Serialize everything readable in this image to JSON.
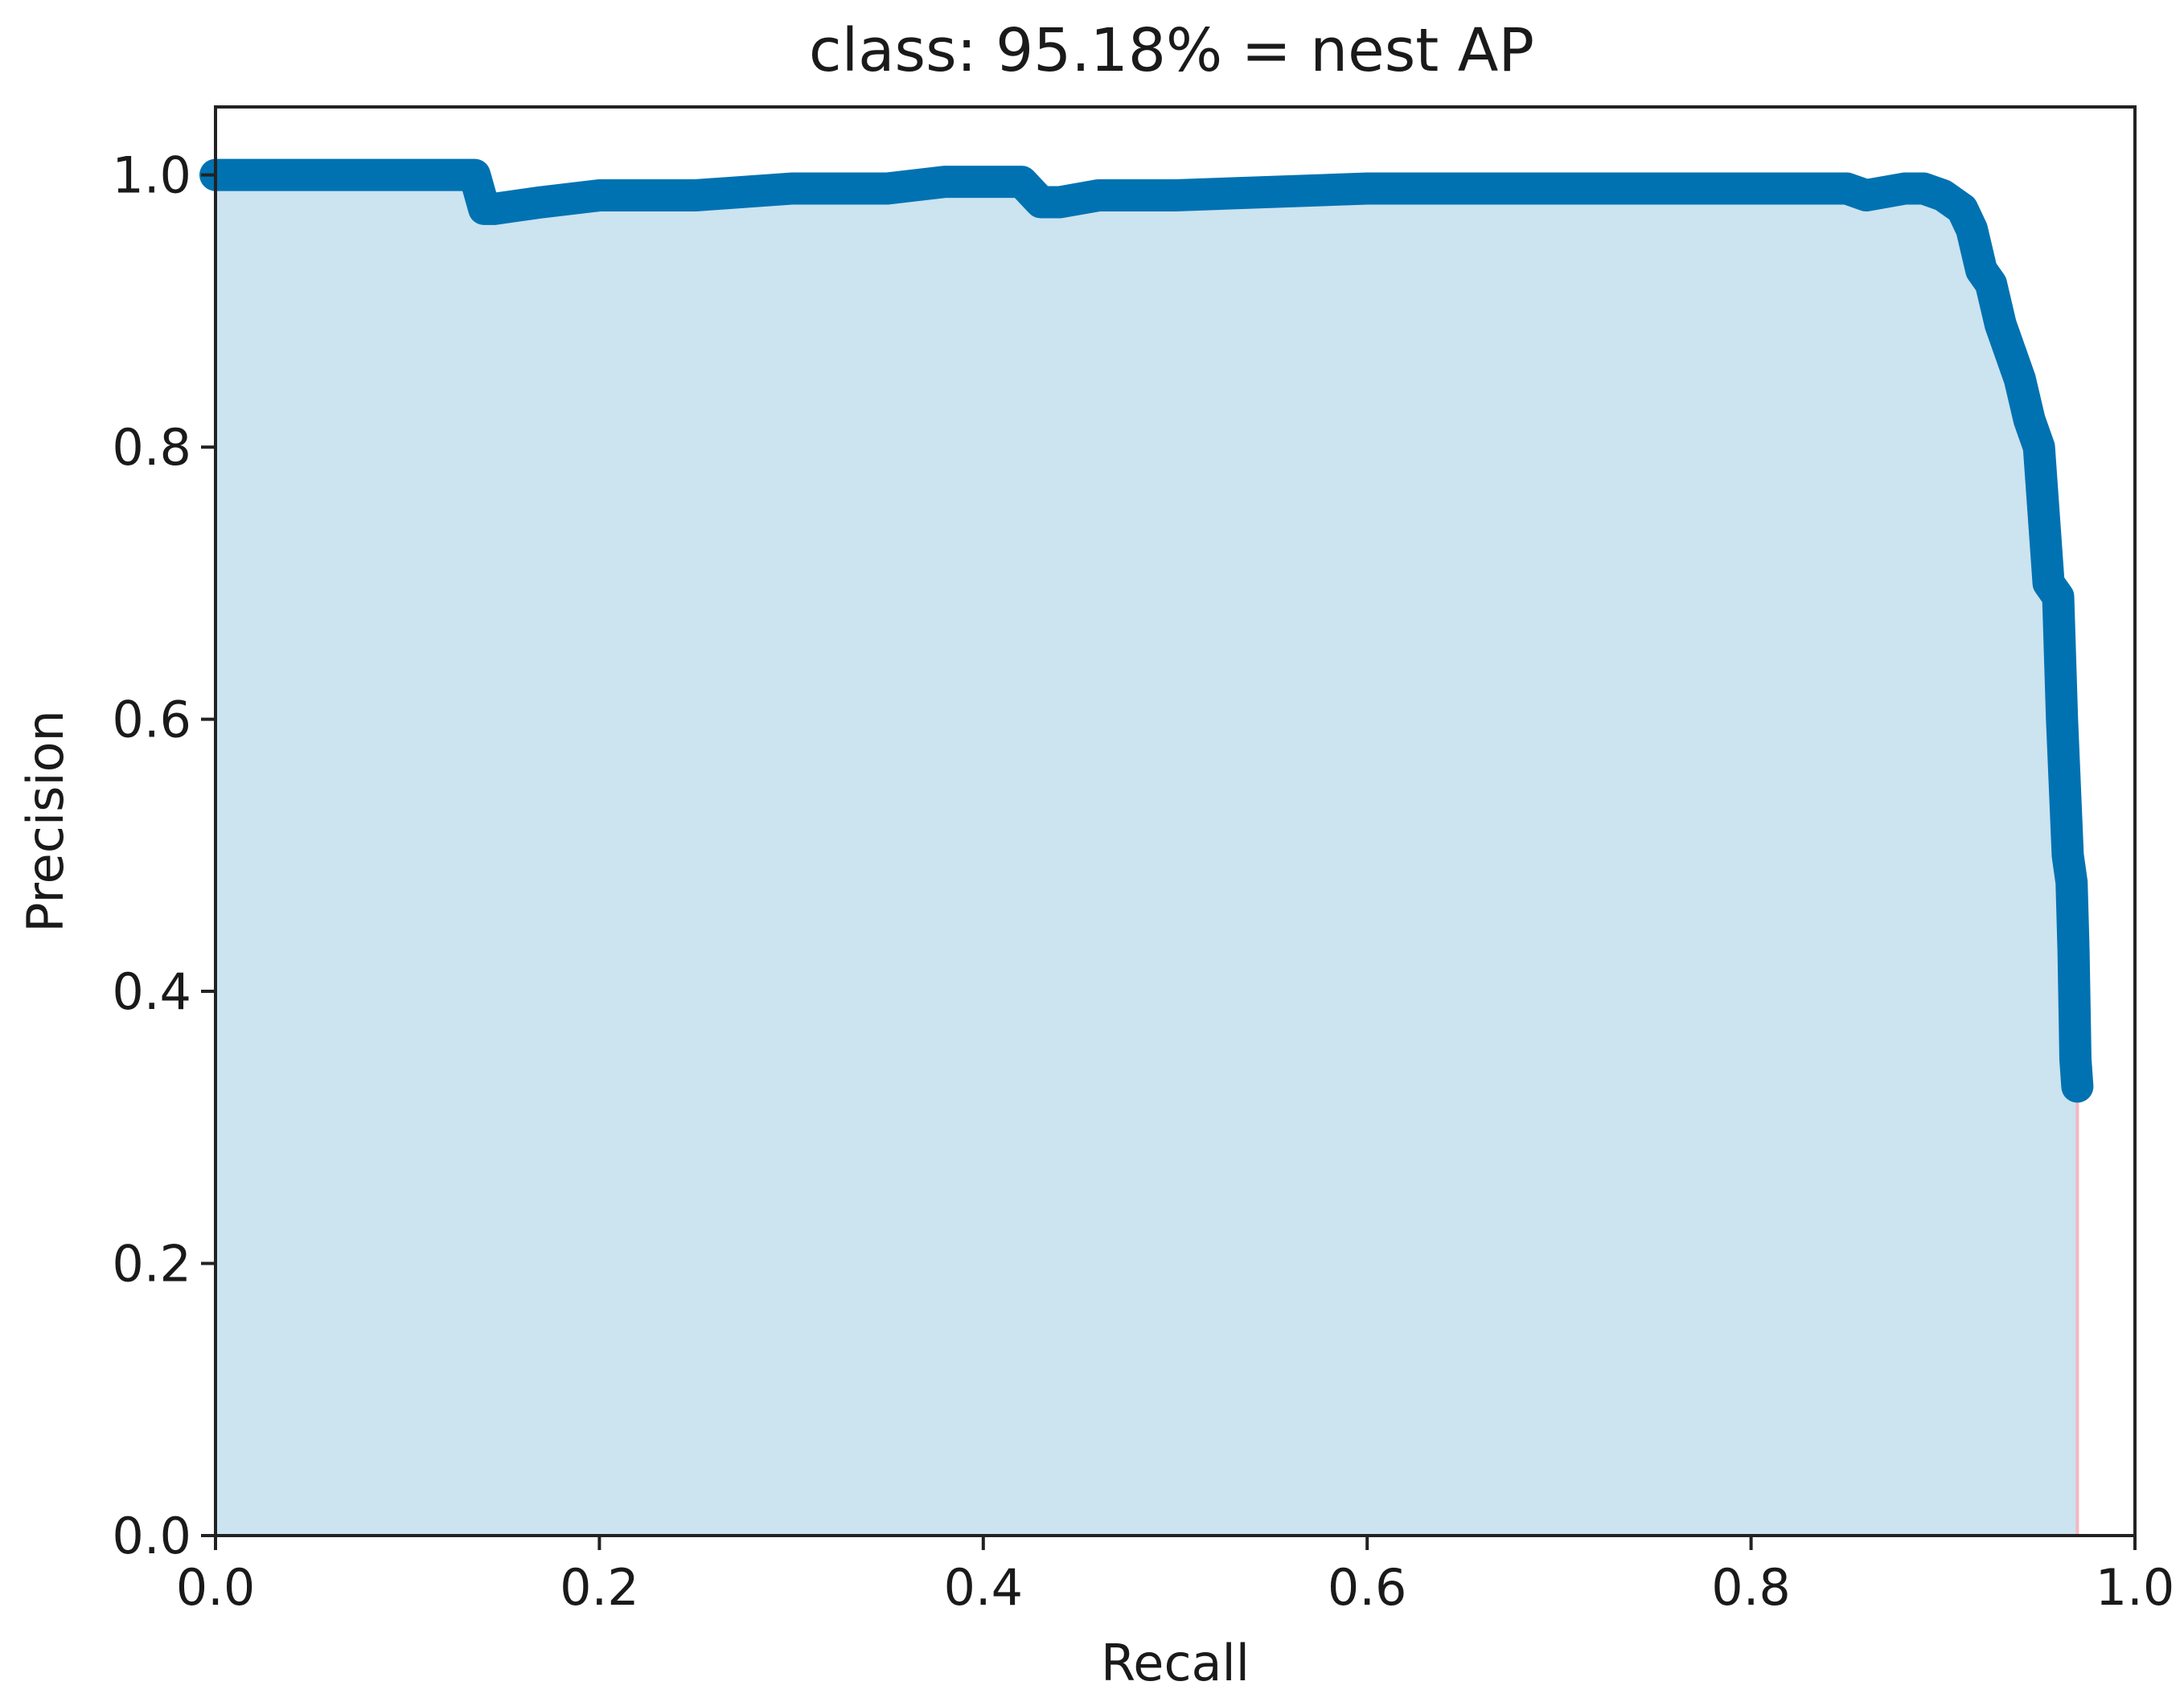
{
  "chart_data": {
    "type": "area",
    "title": "class: 95.18% = nest AP",
    "xlabel": "Recall",
    "ylabel": "Precision",
    "xlim": [
      0.0,
      1.0
    ],
    "ylim": [
      0.0,
      1.05
    ],
    "xticks": [
      "0.0",
      "0.2",
      "0.4",
      "0.6",
      "0.8",
      "1.0"
    ],
    "yticks": [
      "0.0",
      "0.2",
      "0.4",
      "0.6",
      "0.8",
      "1.0"
    ],
    "grid": false,
    "legend": "none",
    "fill_color": "#cce3f0",
    "line_color": "#0072b2",
    "end_marker_color": "#f4b6c2",
    "series": [
      {
        "x": [
          0.0,
          0.05,
          0.1,
          0.135,
          0.14,
          0.145,
          0.17,
          0.2,
          0.25,
          0.3,
          0.35,
          0.38,
          0.4,
          0.42,
          0.43,
          0.44,
          0.46,
          0.5,
          0.6,
          0.7,
          0.75,
          0.8,
          0.85,
          0.86,
          0.88,
          0.89,
          0.9,
          0.91,
          0.915,
          0.92,
          0.925,
          0.93,
          0.935,
          0.94,
          0.945,
          0.95,
          0.955,
          0.96,
          0.962,
          0.965,
          0.967,
          0.968,
          0.969,
          0.97
        ],
        "y": [
          1.0,
          1.0,
          1.0,
          1.0,
          0.975,
          0.975,
          0.98,
          0.985,
          0.985,
          0.99,
          0.99,
          0.995,
          0.995,
          0.995,
          0.98,
          0.98,
          0.985,
          0.985,
          0.99,
          0.99,
          0.99,
          0.99,
          0.99,
          0.985,
          0.99,
          0.99,
          0.985,
          0.975,
          0.96,
          0.93,
          0.92,
          0.89,
          0.87,
          0.85,
          0.82,
          0.8,
          0.7,
          0.69,
          0.6,
          0.5,
          0.48,
          0.43,
          0.35,
          0.33
        ]
      }
    ]
  }
}
